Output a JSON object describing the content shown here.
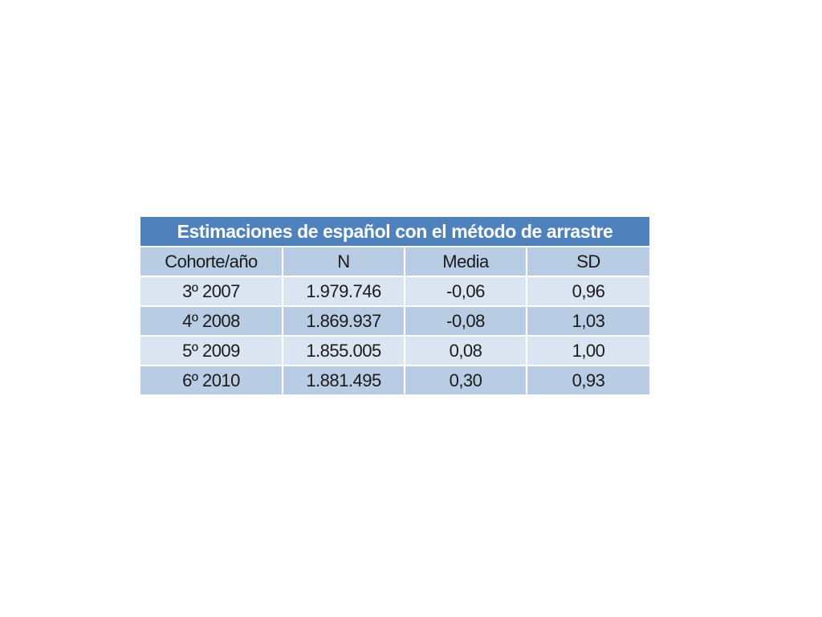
{
  "chart_data": {
    "type": "table",
    "title": "Estimaciones de español con el método de arrastre",
    "columns": [
      "Cohorte/año",
      "N",
      "Media",
      "SD"
    ],
    "rows": [
      [
        "3º 2007",
        "1.979.746",
        "-0,06",
        "0,96"
      ],
      [
        "4º 2008",
        "1.869.937",
        "-0,08",
        "1,03"
      ],
      [
        "5º 2009",
        "1.855.005",
        "0,08",
        "1,00"
      ],
      [
        "6º 2010",
        "1.881.495",
        "0,30",
        "0,93"
      ]
    ]
  },
  "colors": {
    "title_background": "#4f81bd",
    "header_background": "#b8cce4",
    "row_light": "#dbe5f1",
    "row_dark": "#b8cce4"
  }
}
